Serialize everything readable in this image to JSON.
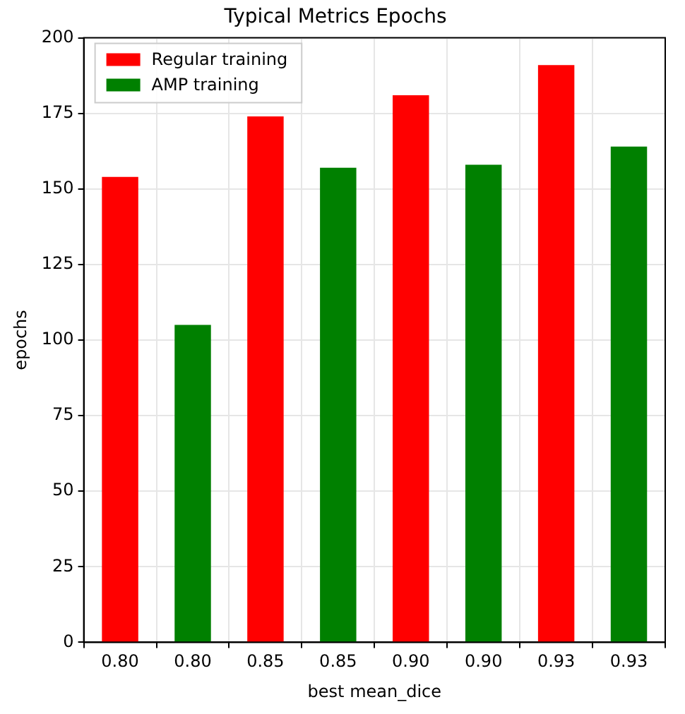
{
  "chart_data": {
    "type": "bar",
    "title": "Typical Metrics Epochs",
    "xlabel": "best mean_dice",
    "ylabel": "epochs",
    "categories": [
      "0.80",
      "0.80",
      "0.85",
      "0.85",
      "0.90",
      "0.90",
      "0.93",
      "0.93"
    ],
    "series": [
      {
        "name": "Regular training",
        "color": "#ff0000",
        "values": [
          154,
          null,
          174,
          null,
          181,
          null,
          191,
          null
        ]
      },
      {
        "name": "AMP training",
        "color": "#008000",
        "values": [
          null,
          105,
          null,
          157,
          null,
          158,
          null,
          164
        ]
      }
    ],
    "ylim": [
      0,
      200
    ],
    "yticks": [
      0,
      25,
      50,
      75,
      100,
      125,
      150,
      175,
      200
    ],
    "grid": true,
    "legend": "top left"
  }
}
